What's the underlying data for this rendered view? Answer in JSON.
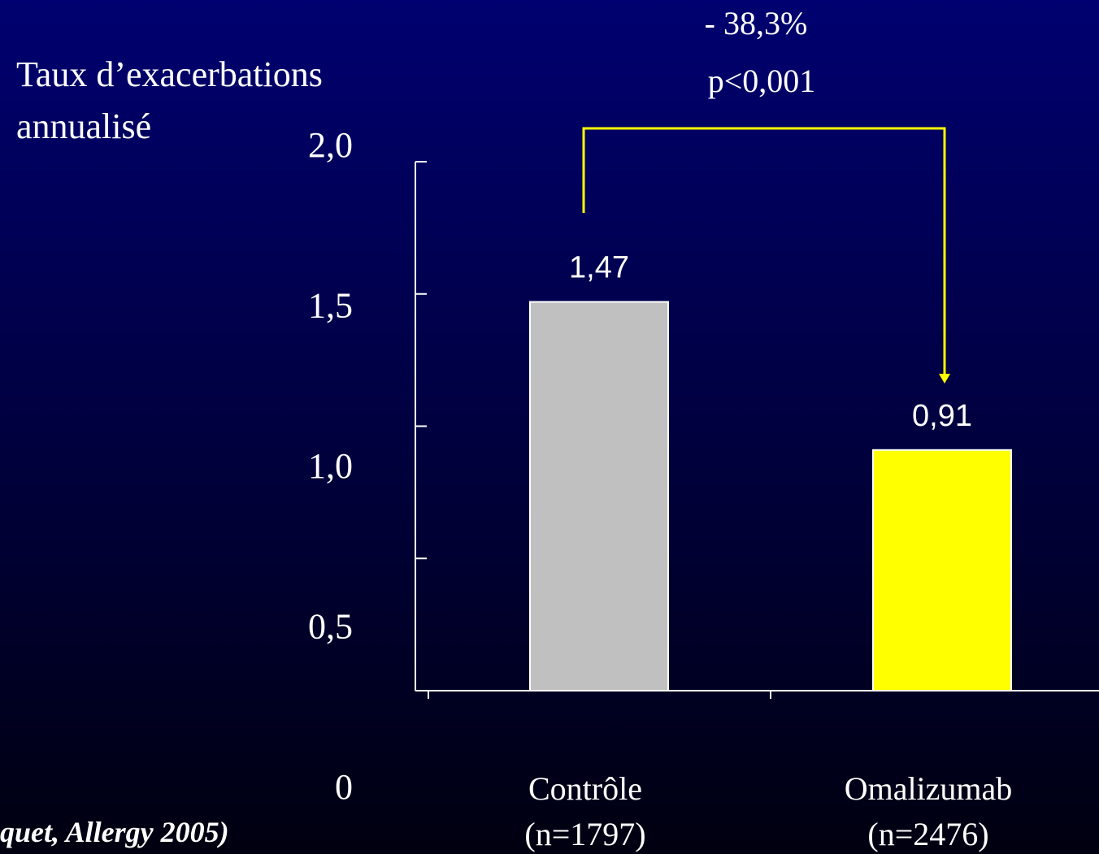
{
  "chart_data": {
    "type": "bar",
    "ylabel": [
      "Taux d’exacerbations",
      "annualisé"
    ],
    "categories": [
      "Contrôle",
      "Omalizumab"
    ],
    "category_notes": [
      "(n=1797)",
      "(n=2476)"
    ],
    "values": [
      1.47,
      0.91
    ],
    "value_labels": [
      "1,47",
      "0,91"
    ],
    "colors": [
      "#c0c0c0",
      "#ffff00"
    ],
    "ylim": [
      0,
      2
    ],
    "yticks": [
      {
        "value": 0,
        "label": "0"
      },
      {
        "value": 0.5,
        "label": "0,5"
      },
      {
        "value": 1,
        "label": "1,0"
      },
      {
        "value": 1.5,
        "label": "1,5"
      },
      {
        "value": 2,
        "label": "2,0"
      }
    ],
    "annotations": [
      "- 38,3%",
      "p<0,001"
    ],
    "source": "quet, Allergy 2005)"
  }
}
